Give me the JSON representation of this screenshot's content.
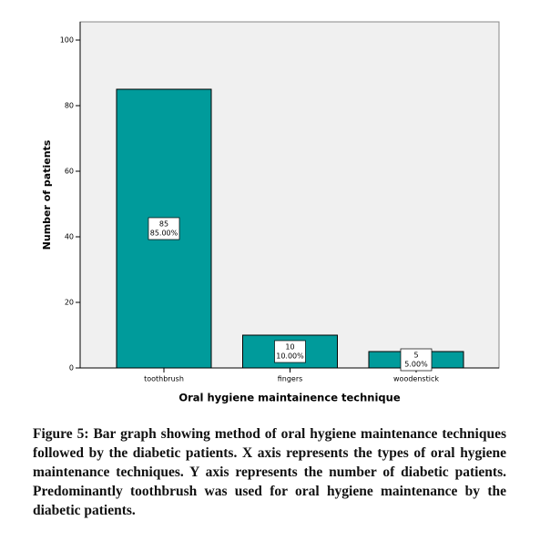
{
  "chart_data": {
    "type": "bar",
    "x_label": "Oral hygiene maintainence technique",
    "y_label": "Number of patients",
    "categories": [
      "toothbrush",
      "fingers",
      "woodenstick"
    ],
    "values": [
      85,
      10,
      5
    ],
    "percent_labels": [
      "85.00%",
      "10.00%",
      "5.00%"
    ],
    "color": "#009b9b",
    "ylim": [
      0,
      100
    ],
    "yticks": [
      0,
      20,
      40,
      60,
      80,
      100
    ],
    "grid": false,
    "caption": "Figure 5:  Bar graph showing method of oral hygiene maintenance techniques followed by the diabetic patients. X axis represents the types of oral hygiene maintenance techniques. Y axis represents the number of diabetic patients. Predominantly toothbrush was used for oral hygiene maintenance by the diabetic patients."
  }
}
